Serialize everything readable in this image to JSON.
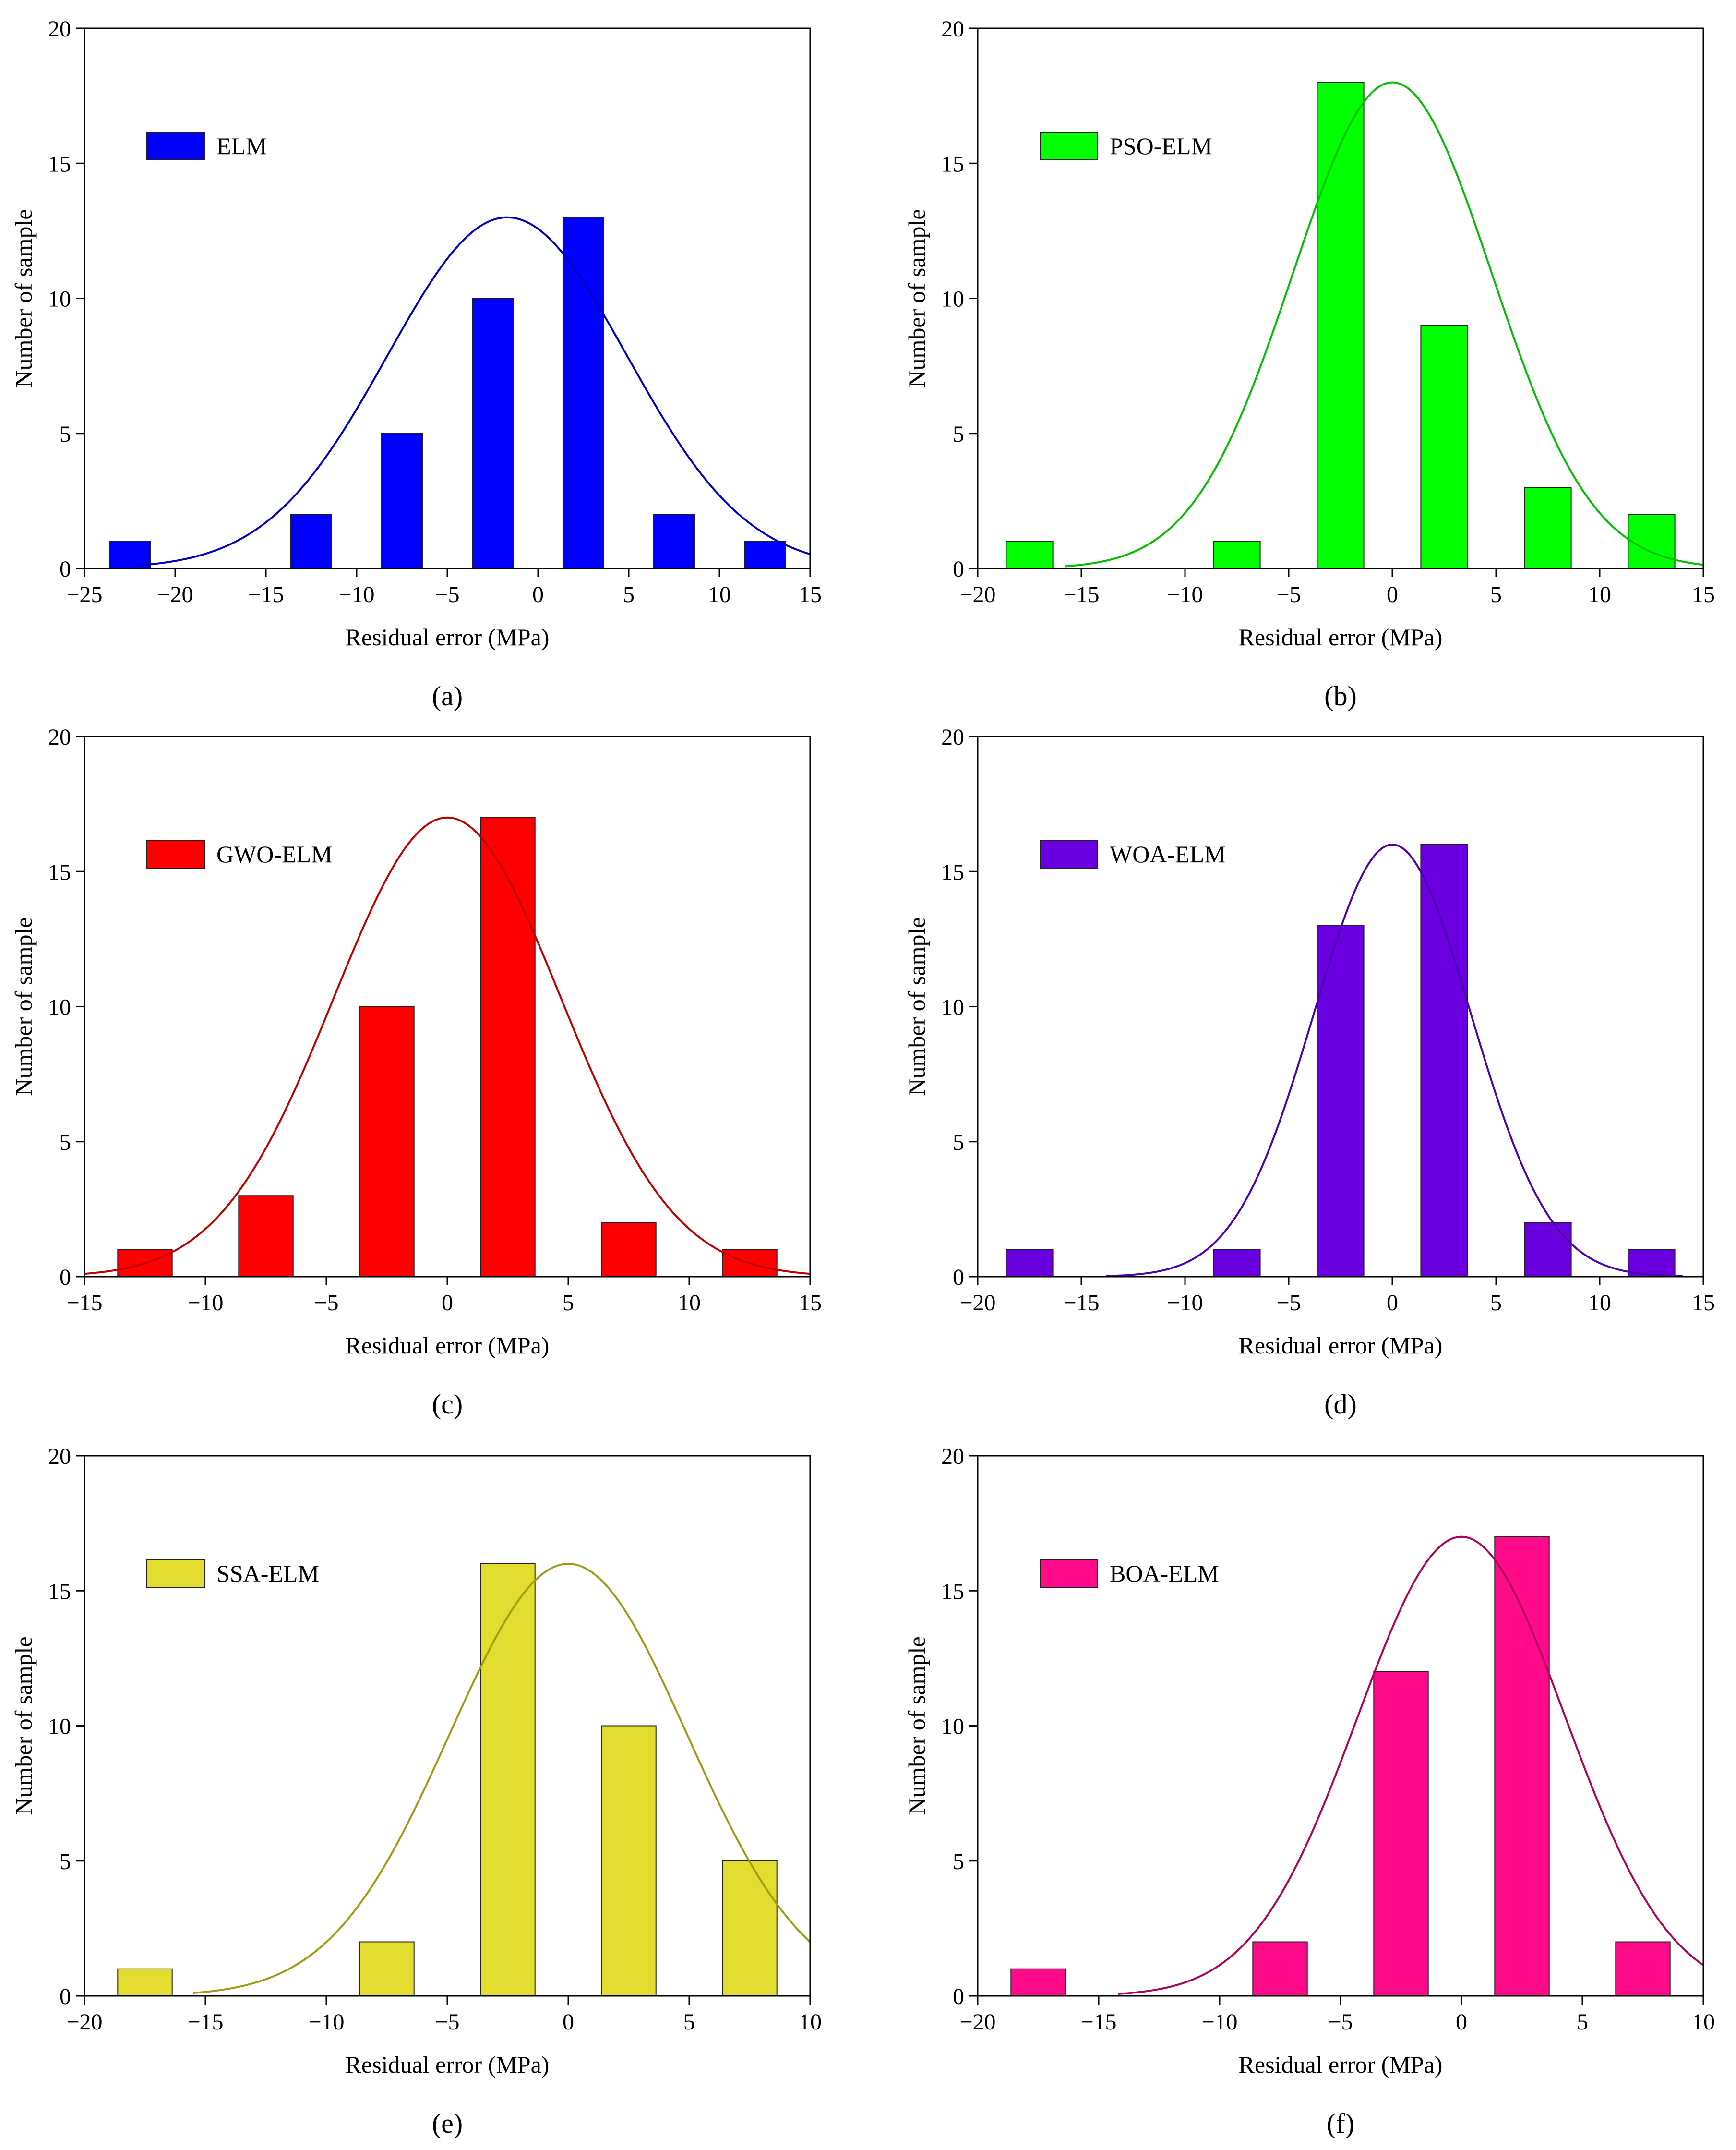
{
  "figure": {
    "common": {
      "xlabel": "Residual error (MPa)",
      "ylabel": "Number of sample",
      "ylim": [
        0,
        20
      ],
      "yticks": [
        0,
        5,
        10,
        15,
        20
      ],
      "grid": false,
      "bar_width": 2.25
    }
  },
  "chart_data": [
    {
      "type": "bar",
      "panel_label": "(a)",
      "series_name": "ELM",
      "color": "#0000ff",
      "curve_color": "#0000c0",
      "xlim": [
        -25,
        15
      ],
      "xticks": [
        -25,
        -20,
        -15,
        -10,
        -5,
        0,
        5,
        10,
        15
      ],
      "bars": [
        {
          "x": -22.5,
          "value": 1
        },
        {
          "x": -12.5,
          "value": 2
        },
        {
          "x": -7.5,
          "value": 5
        },
        {
          "x": -2.5,
          "value": 10
        },
        {
          "x": 2.5,
          "value": 13
        },
        {
          "x": 7.5,
          "value": 2
        },
        {
          "x": 12.5,
          "value": 1
        }
      ],
      "fit": {
        "peak": 13,
        "mean": -1.7,
        "sd": 6.6,
        "x_range": [
          -22.3,
          15
        ]
      },
      "legend_position": "upper-left"
    },
    {
      "type": "bar",
      "panel_label": "(b)",
      "series_name": "PSO-ELM",
      "color": "#00ff00",
      "curve_color": "#00c000",
      "xlim": [
        -20,
        15
      ],
      "xticks": [
        -20,
        -15,
        -10,
        -5,
        0,
        5,
        10,
        15
      ],
      "bars": [
        {
          "x": -17.5,
          "value": 1
        },
        {
          "x": -7.5,
          "value": 1
        },
        {
          "x": -2.5,
          "value": 18
        },
        {
          "x": 2.5,
          "value": 9
        },
        {
          "x": 7.5,
          "value": 3
        },
        {
          "x": 12.5,
          "value": 2
        }
      ],
      "fit": {
        "peak": 18,
        "mean": 0,
        "sd": 4.8,
        "x_range": [
          -15.8,
          15
        ]
      },
      "legend_position": "upper-left"
    },
    {
      "type": "bar",
      "panel_label": "(c)",
      "series_name": "GWO-ELM",
      "color": "#ff0000",
      "curve_color": "#c00000",
      "xlim": [
        -15,
        15
      ],
      "xticks": [
        -15,
        -10,
        -5,
        0,
        5,
        10,
        15
      ],
      "bars": [
        {
          "x": -12.5,
          "value": 1
        },
        {
          "x": -7.5,
          "value": 3
        },
        {
          "x": -2.5,
          "value": 10
        },
        {
          "x": 2.5,
          "value": 17
        },
        {
          "x": 7.5,
          "value": 2
        },
        {
          "x": 12.5,
          "value": 1
        }
      ],
      "fit": {
        "peak": 17,
        "mean": 0,
        "sd": 4.7,
        "x_range": [
          -15,
          15
        ]
      },
      "legend_position": "upper-left"
    },
    {
      "type": "bar",
      "panel_label": "(d)",
      "series_name": "WOA-ELM",
      "color": "#6a00e0",
      "curve_color": "#4a00b0",
      "xlim": [
        -20,
        15
      ],
      "xticks": [
        -20,
        -15,
        -10,
        -5,
        0,
        5,
        10,
        15
      ],
      "bars": [
        {
          "x": -17.5,
          "value": 1
        },
        {
          "x": -7.5,
          "value": 1
        },
        {
          "x": -2.5,
          "value": 13
        },
        {
          "x": 2.5,
          "value": 16
        },
        {
          "x": 7.5,
          "value": 2
        },
        {
          "x": 12.5,
          "value": 1
        }
      ],
      "fit": {
        "peak": 16,
        "mean": 0,
        "sd": 3.8,
        "x_range": [
          -13.8,
          14
        ]
      },
      "legend_position": "upper-left"
    },
    {
      "type": "bar",
      "panel_label": "(e)",
      "series_name": "SSA-ELM",
      "color": "#e5dc30",
      "curve_color": "#a09a10",
      "xlim": [
        -20,
        10
      ],
      "xticks": [
        -20,
        -15,
        -10,
        -5,
        0,
        5,
        10
      ],
      "bars": [
        {
          "x": -17.5,
          "value": 1
        },
        {
          "x": -7.5,
          "value": 2
        },
        {
          "x": -2.5,
          "value": 16
        },
        {
          "x": 2.5,
          "value": 10
        },
        {
          "x": 7.5,
          "value": 5
        }
      ],
      "fit": {
        "peak": 16,
        "mean": 0,
        "sd": 4.9,
        "x_range": [
          -15.5,
          10
        ]
      },
      "legend_position": "upper-left"
    },
    {
      "type": "bar",
      "panel_label": "(f)",
      "series_name": "BOA-ELM",
      "color": "#ff0a8a",
      "curve_color": "#b0005a",
      "xlim": [
        -20,
        10
      ],
      "xticks": [
        -20,
        -15,
        -10,
        -5,
        0,
        5,
        10
      ],
      "bars": [
        {
          "x": -17.5,
          "value": 1
        },
        {
          "x": -7.5,
          "value": 2
        },
        {
          "x": -2.5,
          "value": 12
        },
        {
          "x": 2.5,
          "value": 17
        },
        {
          "x": 7.5,
          "value": 2
        }
      ],
      "fit": {
        "peak": 17,
        "mean": 0,
        "sd": 4.3,
        "x_range": [
          -14.2,
          10
        ]
      },
      "legend_position": "upper-left"
    }
  ]
}
